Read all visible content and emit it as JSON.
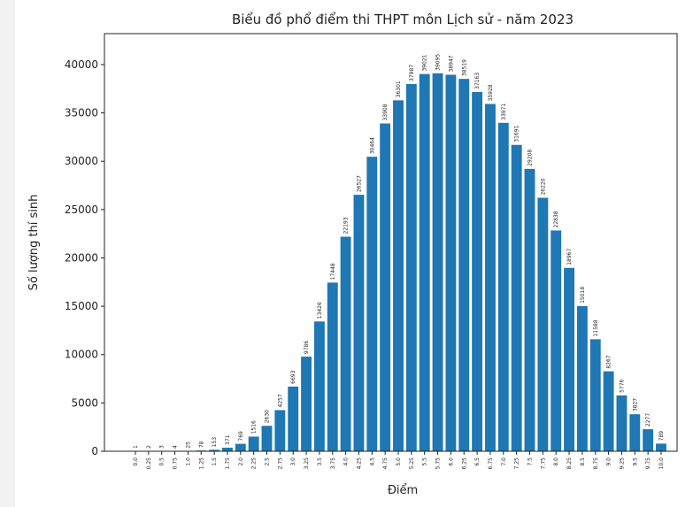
{
  "chart_data": {
    "type": "bar",
    "title": "Biểu đồ phổ điểm thi THPT môn Lịch sử - năm 2023",
    "x_label": "Điểm",
    "y_label": "Số lượng thí sinh",
    "categories": [
      "0.0",
      "0.25",
      "0.5",
      "0.75",
      "1.0",
      "1.25",
      "1.5",
      "1.75",
      "2.0",
      "2.25",
      "2.5",
      "2.75",
      "3.0",
      "3.25",
      "3.5",
      "3.75",
      "4.0",
      "4.25",
      "4.5",
      "4.75",
      "5.0",
      "5.25",
      "5.5",
      "5.75",
      "6.0",
      "6.25",
      "6.5",
      "6.75",
      "7.0",
      "7.25",
      "7.5",
      "7.75",
      "8.0",
      "8.25",
      "8.5",
      "8.75",
      "9.0",
      "9.25",
      "9.5",
      "9.75",
      "10.0"
    ],
    "values": [
      1,
      2,
      3,
      4,
      25,
      78,
      153,
      371,
      769,
      1516,
      2630,
      4257,
      6693,
      9786,
      13426,
      17448,
      22193,
      26527,
      30464,
      33908,
      36301,
      37987,
      39021,
      39095,
      38947,
      38519,
      37163,
      35928,
      33971,
      31691,
      29208,
      26220,
      22838,
      18967,
      15018,
      11588,
      8267,
      5776,
      3827,
      2277,
      789
    ],
    "color": "#1f77b4",
    "ylim": [
      0,
      43200
    ],
    "yticks": [
      0,
      5000,
      10000,
      15000,
      20000,
      25000,
      30000,
      35000,
      40000
    ]
  }
}
